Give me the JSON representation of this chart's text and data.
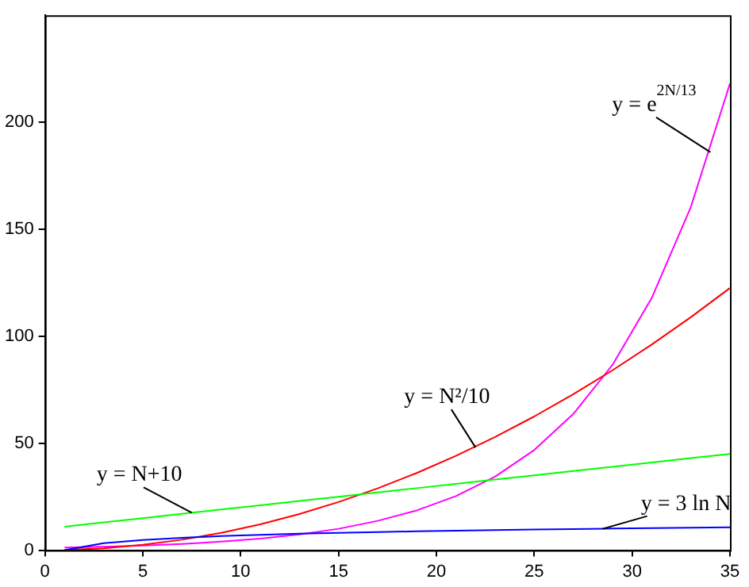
{
  "chart_data": {
    "type": "line",
    "x": [
      1,
      3,
      5,
      7,
      9,
      11,
      13,
      15,
      17,
      19,
      21,
      23,
      25,
      27,
      29,
      31,
      33,
      35
    ],
    "series": [
      {
        "color": "#0000ff",
        "values": [
          0,
          3.3,
          4.8,
          5.8,
          6.6,
          7.2,
          7.7,
          8.1,
          8.5,
          8.8,
          9.1,
          9.4,
          9.7,
          9.9,
          10.1,
          10.3,
          10.5,
          10.7
        ]
      },
      {
        "color": "#00ff00",
        "values": [
          11,
          13,
          15,
          17,
          19,
          21,
          23,
          25,
          27,
          29,
          31,
          33,
          35,
          37,
          39,
          41,
          43,
          45
        ]
      },
      {
        "color": "#ff0000",
        "values": [
          0.1,
          0.9,
          2.5,
          4.9,
          8.1,
          12.1,
          16.9,
          22.5,
          28.9,
          36.1,
          44.1,
          52.9,
          62.5,
          72.9,
          84.1,
          96.1,
          108.9,
          122.5
        ]
      },
      {
        "color": "#ff00ff",
        "values": [
          1.2,
          1.6,
          2.2,
          2.9,
          4,
          5.4,
          7.4,
          10,
          13.7,
          18.6,
          25.3,
          34.4,
          46.8,
          63.7,
          86.6,
          117.8,
          160.3,
          218.1
        ]
      }
    ],
    "xlim": [
      0,
      35
    ],
    "xticks": [
      0,
      5,
      10,
      15,
      20,
      25,
      30,
      35
    ],
    "ylim": [
      0,
      250
    ],
    "yticks": [
      0,
      50,
      100,
      150,
      200
    ],
    "annotations": [
      {
        "text": "y = 3 ln N",
        "x": 28.5,
        "y": 10
      },
      {
        "text": "y = N+10",
        "x": 7.5,
        "y": 17.5
      },
      {
        "text": "y = N²/10",
        "x": 22,
        "y": 48
      },
      {
        "text": "y = e$^{2N/13}$",
        "x": 34,
        "y": 186
      }
    ],
    "grid": false,
    "legend": false,
    "marker": "none",
    "line_style": "solid"
  }
}
